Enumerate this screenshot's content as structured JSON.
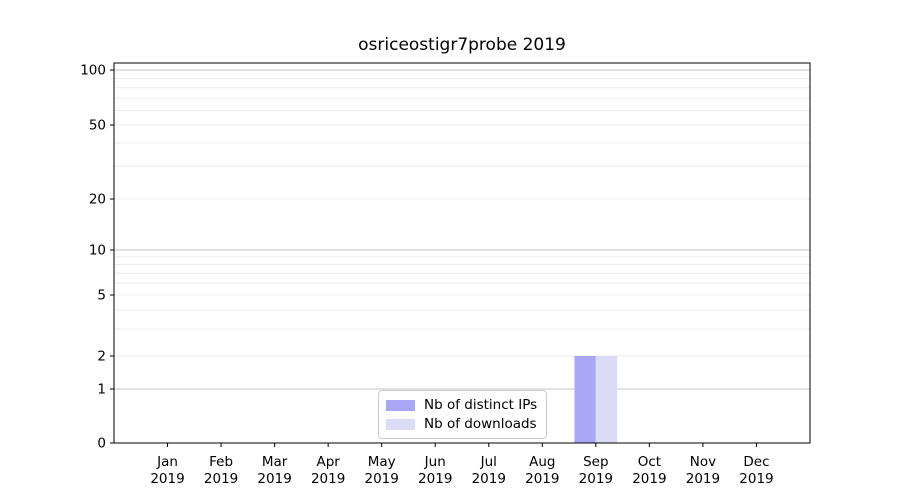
{
  "chart_data": {
    "type": "bar",
    "title": "osriceostigr7probe 2019",
    "year_label": "2019",
    "categories": [
      "Jan",
      "Feb",
      "Mar",
      "Apr",
      "May",
      "Jun",
      "Jul",
      "Aug",
      "Sep",
      "Oct",
      "Nov",
      "Dec"
    ],
    "series": [
      {
        "name": "Nb of distinct IPs",
        "color": "#a8a8f7",
        "values": [
          0,
          0,
          0,
          0,
          0,
          0,
          0,
          0,
          2,
          0,
          0,
          0
        ]
      },
      {
        "name": "Nb of downloads",
        "color": "#dcdcf9",
        "values": [
          0,
          0,
          0,
          0,
          0,
          0,
          0,
          0,
          2,
          0,
          0,
          0
        ]
      }
    ],
    "yticks": [
      0,
      1,
      2,
      5,
      10,
      20,
      50,
      100
    ],
    "ylim": [
      0,
      110
    ],
    "yscale": "symlog",
    "grid": "horizontal",
    "legend_position": "lower center",
    "legend_entries": [
      "Nb of distinct IPs",
      "Nb of downloads"
    ]
  },
  "colors": {
    "bar_distinct_ips": "#a8a8f7",
    "bar_downloads": "#dcdcf9",
    "grid_major": "#c6c6c6",
    "grid_minor": "#ebebeb",
    "spine": "#000000",
    "text": "#000000",
    "legend_border": "#cccccc"
  }
}
